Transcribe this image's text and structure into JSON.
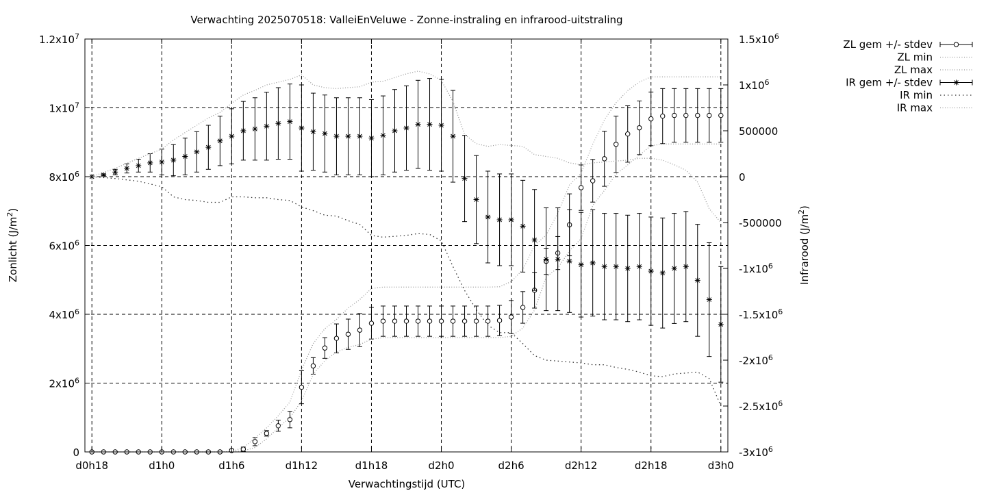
{
  "chart_data": {
    "type": "line",
    "title": "Verwachting 2025070518: ValleiEnVeluwe - Zonne-instraling en infrarood-uitstraling",
    "xlabel": "Verwachtingstijd (UTC)",
    "ylabel": {
      "base": "Zonlicht (J/m",
      "sup": "2",
      "end": ")"
    },
    "y2label": {
      "base": "Infrarood (J/m",
      "sup": "2",
      "end": ")"
    },
    "x_range": [
      -0.6,
      54.6
    ],
    "x_ticks": [
      {
        "x": 0,
        "label": "d0h18"
      },
      {
        "x": 6,
        "label": "d1h0"
      },
      {
        "x": 12,
        "label": "d1h6"
      },
      {
        "x": 18,
        "label": "d1h12"
      },
      {
        "x": 24,
        "label": "d1h18"
      },
      {
        "x": 30,
        "label": "d2h0"
      },
      {
        "x": 36,
        "label": "d2h6"
      },
      {
        "x": 42,
        "label": "d2h12"
      },
      {
        "x": 48,
        "label": "d2h18"
      },
      {
        "x": 54,
        "label": "d3h0"
      }
    ],
    "ylim": [
      0,
      12000000
    ],
    "y_ticks": [
      {
        "v": 0,
        "base": "0",
        "sup": ""
      },
      {
        "v": 2000000,
        "base": "2x10",
        "sup": "6"
      },
      {
        "v": 4000000,
        "base": "4x10",
        "sup": "6"
      },
      {
        "v": 6000000,
        "base": "6x10",
        "sup": "6"
      },
      {
        "v": 8000000,
        "base": "8x10",
        "sup": "6"
      },
      {
        "v": 10000000,
        "base": "1x10",
        "sup": "7"
      },
      {
        "v": 12000000,
        "base": "1.2x10",
        "sup": "7"
      }
    ],
    "y2lim": [
      -3000000,
      1500000
    ],
    "y2_ticks": [
      {
        "v": 1500000,
        "base": "1.5x10",
        "sup": "6"
      },
      {
        "v": 1000000,
        "base": "1x10",
        "sup": "6"
      },
      {
        "v": 500000,
        "base": "500000",
        "sup": ""
      },
      {
        "v": 0,
        "base": "0",
        "sup": ""
      },
      {
        "v": -500000,
        "base": "-500000",
        "sup": ""
      },
      {
        "v": -1000000,
        "base": "-1x10",
        "sup": "6"
      },
      {
        "v": -1500000,
        "base": "-1.5x10",
        "sup": "6"
      },
      {
        "v": -2000000,
        "base": "-2x10",
        "sup": "6"
      },
      {
        "v": -2500000,
        "base": "-2.5x10",
        "sup": "6"
      },
      {
        "v": -3000000,
        "base": "-3x10",
        "sup": "6"
      }
    ],
    "grid": true,
    "legend_position": "outside-top-right",
    "series": [
      {
        "name": "ZL gem +/- stdev",
        "axis": "y",
        "style": "errorbar-circle",
        "x": [
          0,
          1,
          2,
          3,
          4,
          5,
          6,
          7,
          8,
          9,
          10,
          11,
          12,
          13,
          14,
          15,
          16,
          17,
          18,
          19,
          20,
          21,
          22,
          23,
          24,
          25,
          26,
          27,
          28,
          29,
          30,
          31,
          32,
          33,
          34,
          35,
          36,
          37,
          38,
          39,
          40,
          41,
          42,
          43,
          44,
          45,
          46,
          47,
          48,
          49,
          50,
          51,
          52,
          53,
          54
        ],
        "mean": [
          0,
          0,
          0,
          0,
          0,
          0,
          0,
          0,
          0,
          0,
          0,
          0,
          40000,
          80000,
          300000,
          540000,
          760000,
          940000,
          1880000,
          2500000,
          3020000,
          3300000,
          3420000,
          3540000,
          3740000,
          3800000,
          3800000,
          3800000,
          3800000,
          3800000,
          3800000,
          3800000,
          3800000,
          3800000,
          3800000,
          3820000,
          3920000,
          4200000,
          4700000,
          5540000,
          5780000,
          6600000,
          7680000,
          7880000,
          8520000,
          8940000,
          9240000,
          9420000,
          9680000,
          9760000,
          9780000,
          9780000,
          9780000,
          9780000,
          9780000
        ],
        "stdev": [
          0,
          0,
          0,
          0,
          0,
          0,
          0,
          0,
          10000,
          20000,
          30000,
          30000,
          40000,
          60000,
          120000,
          80000,
          160000,
          240000,
          480000,
          240000,
          300000,
          420000,
          440000,
          480000,
          460000,
          440000,
          440000,
          440000,
          440000,
          440000,
          440000,
          440000,
          440000,
          440000,
          440000,
          440000,
          480000,
          460000,
          520000,
          380000,
          480000,
          900000,
          660000,
          620000,
          800000,
          820000,
          820000,
          780000,
          780000,
          800000,
          780000,
          780000,
          780000,
          780000,
          780000
        ]
      },
      {
        "name": "ZL min",
        "axis": "y",
        "style": "dotted",
        "x": [
          0,
          6,
          11,
          12,
          13,
          14,
          15,
          16,
          17,
          18,
          19,
          20,
          21,
          22,
          23,
          24,
          25,
          26,
          27,
          28,
          29,
          30,
          31,
          32,
          33,
          34,
          35,
          36,
          37,
          38,
          39,
          40,
          41,
          42,
          43,
          44,
          45,
          46,
          47,
          48,
          49,
          50,
          51,
          52,
          53,
          54
        ],
        "values": [
          0,
          0,
          0,
          10000,
          30000,
          130000,
          380000,
          700000,
          1000000,
          1480000,
          2260000,
          2650000,
          2900000,
          3040000,
          3120000,
          3280000,
          3320000,
          3320000,
          3320000,
          3320000,
          3320000,
          3320000,
          3320000,
          3320000,
          3320000,
          3320000,
          3320000,
          3360000,
          3600000,
          4120000,
          5080000,
          5350000,
          5840000,
          6200000,
          7160000,
          7600000,
          8070000,
          8340000,
          8620000,
          8900000,
          8950000,
          8950000,
          8950000,
          8950000,
          8950000,
          8950000
        ]
      },
      {
        "name": "ZL max",
        "axis": "y",
        "style": "dotted",
        "x": [
          0,
          6,
          11,
          12,
          13,
          14,
          15,
          16,
          17,
          18,
          19,
          20,
          21,
          22,
          23,
          24,
          25,
          26,
          27,
          28,
          29,
          30,
          31,
          32,
          33,
          34,
          35,
          36,
          37,
          38,
          39,
          40,
          41,
          42,
          43,
          44,
          45,
          46,
          47,
          48,
          49,
          50,
          51,
          52,
          53,
          54
        ],
        "values": [
          0,
          0,
          0,
          10000,
          130000,
          400000,
          700000,
          1050000,
          1450000,
          2380000,
          3150000,
          3580000,
          3850000,
          4180000,
          4430000,
          4750000,
          4790000,
          4790000,
          4790000,
          4790000,
          4790000,
          4790000,
          4790000,
          4790000,
          4790000,
          4790000,
          4800000,
          4950000,
          5300000,
          6000000,
          6300000,
          6940000,
          7760000,
          8100000,
          8950000,
          9650000,
          10150000,
          10500000,
          10750000,
          10900000,
          10900000,
          10900000,
          10900000,
          10900000,
          10900000,
          10900000
        ]
      },
      {
        "name": "IR gem +/- stdev",
        "axis": "y2",
        "style": "errorbar-star",
        "x": [
          0,
          1,
          2,
          3,
          4,
          5,
          6,
          7,
          8,
          9,
          10,
          11,
          12,
          13,
          14,
          15,
          16,
          17,
          18,
          19,
          20,
          21,
          22,
          23,
          24,
          25,
          26,
          27,
          28,
          29,
          30,
          31,
          32,
          33,
          34,
          35,
          36,
          37,
          38,
          39,
          40,
          41,
          42,
          43,
          44,
          45,
          46,
          47,
          48,
          49,
          50,
          51,
          52,
          53,
          54
        ],
        "mean": [
          0,
          20000,
          50000,
          90000,
          120000,
          150000,
          160000,
          180000,
          220000,
          270000,
          320000,
          390000,
          440000,
          500000,
          520000,
          550000,
          580000,
          600000,
          530000,
          490000,
          470000,
          440000,
          440000,
          440000,
          420000,
          450000,
          500000,
          530000,
          570000,
          570000,
          560000,
          440000,
          -20000,
          -250000,
          -440000,
          -470000,
          -470000,
          -540000,
          -690000,
          -900000,
          -900000,
          -920000,
          -960000,
          -940000,
          -980000,
          -980000,
          -1000000,
          -980000,
          -1030000,
          -1050000,
          -1000000,
          -980000,
          -1130000,
          -1340000,
          -1610000
        ],
        "stdev": [
          0,
          10000,
          30000,
          50000,
          70000,
          100000,
          140000,
          170000,
          200000,
          220000,
          240000,
          270000,
          300000,
          320000,
          340000,
          370000,
          390000,
          410000,
          470000,
          420000,
          420000,
          420000,
          420000,
          420000,
          420000,
          430000,
          450000,
          460000,
          480000,
          500000,
          500000,
          500000,
          470000,
          480000,
          500000,
          500000,
          500000,
          500000,
          550000,
          560000,
          560000,
          560000,
          570000,
          580000,
          580000,
          580000,
          580000,
          580000,
          590000,
          600000,
          600000,
          600000,
          610000,
          620000,
          630000
        ]
      },
      {
        "name": "IR min",
        "axis": "y2",
        "style": "dotted",
        "x": [
          0,
          2,
          4,
          6,
          7,
          8,
          9,
          10,
          11,
          12,
          13,
          14,
          15,
          16,
          17,
          18,
          19,
          20,
          21,
          22,
          23,
          24,
          25,
          26,
          27,
          28,
          29,
          30,
          31,
          32,
          33,
          34,
          35,
          36,
          37,
          38,
          39,
          40,
          41,
          42,
          43,
          44,
          45,
          46,
          47,
          48,
          49,
          50,
          51,
          52,
          53,
          54
        ],
        "values": [
          0,
          -20000,
          -50000,
          -110000,
          -220000,
          -250000,
          -260000,
          -280000,
          -280000,
          -220000,
          -220000,
          -230000,
          -230000,
          -250000,
          -260000,
          -330000,
          -370000,
          -420000,
          -430000,
          -480000,
          -520000,
          -640000,
          -660000,
          -650000,
          -640000,
          -620000,
          -630000,
          -700000,
          -980000,
          -1240000,
          -1450000,
          -1620000,
          -1700000,
          -1700000,
          -1820000,
          -1950000,
          -2000000,
          -2010000,
          -2020000,
          -2030000,
          -2050000,
          -2050000,
          -2080000,
          -2100000,
          -2130000,
          -2170000,
          -2180000,
          -2150000,
          -2140000,
          -2130000,
          -2200000,
          -2500000
        ]
      },
      {
        "name": "IR max",
        "axis": "y2",
        "style": "dotted",
        "x": [
          0,
          2,
          4,
          6,
          7,
          8,
          9,
          10,
          11,
          12,
          13,
          14,
          15,
          16,
          17,
          18,
          19,
          20,
          21,
          22,
          23,
          24,
          25,
          26,
          27,
          28,
          29,
          30,
          31,
          32,
          33,
          34,
          35,
          36,
          37,
          38,
          39,
          40,
          41,
          42,
          43,
          44,
          45,
          46,
          47,
          48,
          49,
          50,
          51,
          52,
          53,
          54
        ],
        "values": [
          0,
          90000,
          200000,
          300000,
          400000,
          480000,
          560000,
          640000,
          700000,
          800000,
          890000,
          940000,
          1000000,
          1030000,
          1060000,
          1110000,
          1000000,
          970000,
          960000,
          970000,
          980000,
          1030000,
          1040000,
          1080000,
          1120000,
          1150000,
          1120000,
          1050000,
          820000,
          460000,
          360000,
          330000,
          350000,
          340000,
          330000,
          240000,
          220000,
          200000,
          150000,
          130000,
          150000,
          160000,
          170000,
          180000,
          200000,
          200000,
          180000,
          130000,
          70000,
          -60000,
          -350000,
          -500000
        ]
      }
    ]
  }
}
